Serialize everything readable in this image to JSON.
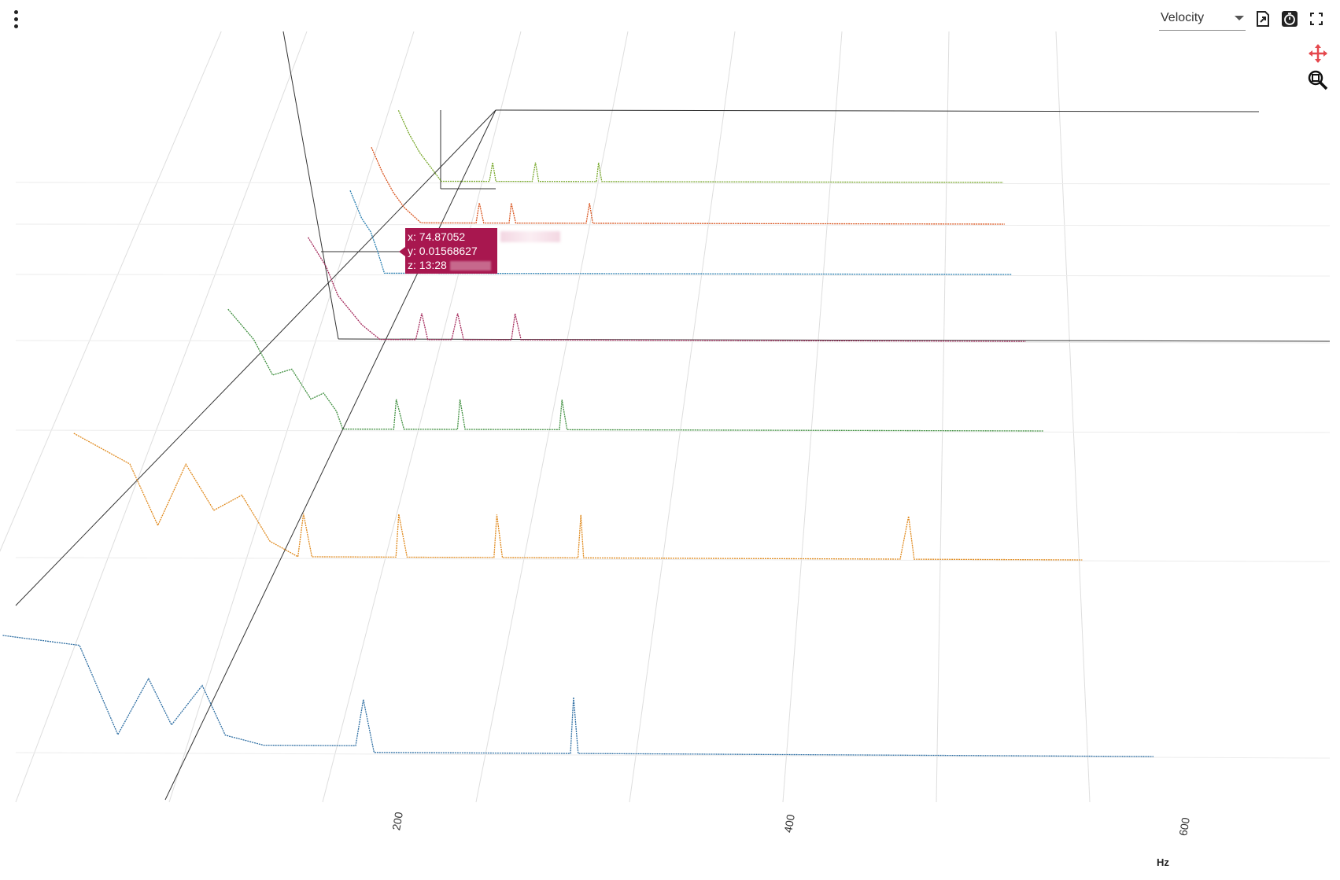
{
  "toolbar": {
    "menu_icon": "kebab-menu-icon",
    "measure_select": {
      "value": "Velocity"
    },
    "export_icon": "export-icon",
    "timer_icon": "timer-icon",
    "fullscreen_icon": "fullscreen-icon",
    "pan_icon": "pan-move-icon",
    "zoom_icon": "zoom-icon",
    "pan_icon_color": "#e5484d"
  },
  "tooltip": {
    "x": "x: 74.87052",
    "y": "y: 0.01568627",
    "z": "z: 13:28"
  },
  "chart_data": {
    "type": "line",
    "subtype": "3d-waterfall",
    "title": "",
    "xlabel": "Hz",
    "ylabel": "",
    "zlabel": "",
    "x_ticks": [
      200,
      400,
      600
    ],
    "xlim": [
      0,
      680
    ],
    "series": [
      {
        "color": "#2f6fa3",
        "points": [
          [
            -70,
            0.35
          ],
          [
            -20,
            0.32
          ],
          [
            5,
            0.05
          ],
          [
            25,
            0.22
          ],
          [
            40,
            0.08
          ],
          [
            60,
            0.2
          ],
          [
            75,
            0.05
          ],
          [
            100,
            0.02
          ],
          [
            160,
            0.02
          ],
          [
            165,
            0.16
          ],
          [
            172,
            0.0
          ],
          [
            300,
            0.0
          ],
          [
            302,
            0.17
          ],
          [
            305,
            0.0
          ],
          [
            680,
            0.0
          ]
        ]
      },
      {
        "color": "#e08a1e",
        "points": [
          [
            -40,
            0.4
          ],
          [
            0,
            0.3
          ],
          [
            20,
            0.1
          ],
          [
            40,
            0.3
          ],
          [
            60,
            0.15
          ],
          [
            80,
            0.2
          ],
          [
            100,
            0.05
          ],
          [
            120,
            0.0
          ],
          [
            124,
            0.14
          ],
          [
            130,
            0.0
          ],
          [
            190,
            0.0
          ],
          [
            192,
            0.14
          ],
          [
            198,
            0.0
          ],
          [
            260,
            0.0
          ],
          [
            262,
            0.14
          ],
          [
            266,
            0.0
          ],
          [
            320,
            0.0
          ],
          [
            322,
            0.14
          ],
          [
            324,
            0.0
          ],
          [
            550,
            0.0
          ],
          [
            556,
            0.14
          ],
          [
            560,
            0.0
          ],
          [
            680,
            0.0
          ]
        ]
      },
      {
        "color": "#3f8f3f",
        "points": [
          [
            40,
            0.4
          ],
          [
            60,
            0.3
          ],
          [
            75,
            0.18
          ],
          [
            90,
            0.2
          ],
          [
            105,
            0.1
          ],
          [
            115,
            0.12
          ],
          [
            125,
            0.06
          ],
          [
            130,
            0.0
          ],
          [
            170,
            0.0
          ],
          [
            172,
            0.1
          ],
          [
            178,
            0.0
          ],
          [
            220,
            0.0
          ],
          [
            222,
            0.1
          ],
          [
            226,
            0.0
          ],
          [
            300,
            0.0
          ],
          [
            302,
            0.1
          ],
          [
            306,
            0.0
          ],
          [
            680,
            0.0
          ]
        ]
      },
      {
        "color": "#a3285a",
        "points": [
          [
            80,
            0.35
          ],
          [
            95,
            0.25
          ],
          [
            105,
            0.15
          ],
          [
            115,
            0.1
          ],
          [
            125,
            0.05
          ],
          [
            140,
            0.0
          ],
          [
            170,
            0.0
          ],
          [
            175,
            0.09
          ],
          [
            180,
            0.0
          ],
          [
            200,
            0.0
          ],
          [
            205,
            0.09
          ],
          [
            210,
            0.0
          ],
          [
            250,
            0.0
          ],
          [
            253,
            0.09
          ],
          [
            258,
            0.0
          ],
          [
            680,
            0.0
          ]
        ]
      },
      {
        "color": "#2a7fb0",
        "points": [
          [
            100,
            0.3
          ],
          [
            110,
            0.2
          ],
          [
            118,
            0.15
          ],
          [
            124,
            0.08
          ],
          [
            130,
            0.0
          ],
          [
            680,
            0.0
          ]
        ]
      },
      {
        "color": "#d9541e",
        "points": [
          [
            105,
            0.3
          ],
          [
            115,
            0.2
          ],
          [
            125,
            0.12
          ],
          [
            135,
            0.06
          ],
          [
            150,
            0.0
          ],
          [
            200,
            0.0
          ],
          [
            203,
            0.08
          ],
          [
            207,
            0.0
          ],
          [
            230,
            0.0
          ],
          [
            232,
            0.08
          ],
          [
            236,
            0.0
          ],
          [
            300,
            0.0
          ],
          [
            303,
            0.08
          ],
          [
            306,
            0.0
          ],
          [
            680,
            0.0
          ]
        ]
      },
      {
        "color": "#78a82c",
        "points": [
          [
            115,
            0.3
          ],
          [
            125,
            0.2
          ],
          [
            135,
            0.12
          ],
          [
            145,
            0.06
          ],
          [
            155,
            0.0
          ],
          [
            200,
            0.0
          ],
          [
            203,
            0.08
          ],
          [
            206,
            0.0
          ],
          [
            240,
            0.0
          ],
          [
            243,
            0.08
          ],
          [
            246,
            0.0
          ],
          [
            300,
            0.0
          ],
          [
            302,
            0.08
          ],
          [
            305,
            0.0
          ],
          [
            680,
            0.0
          ]
        ]
      }
    ]
  }
}
